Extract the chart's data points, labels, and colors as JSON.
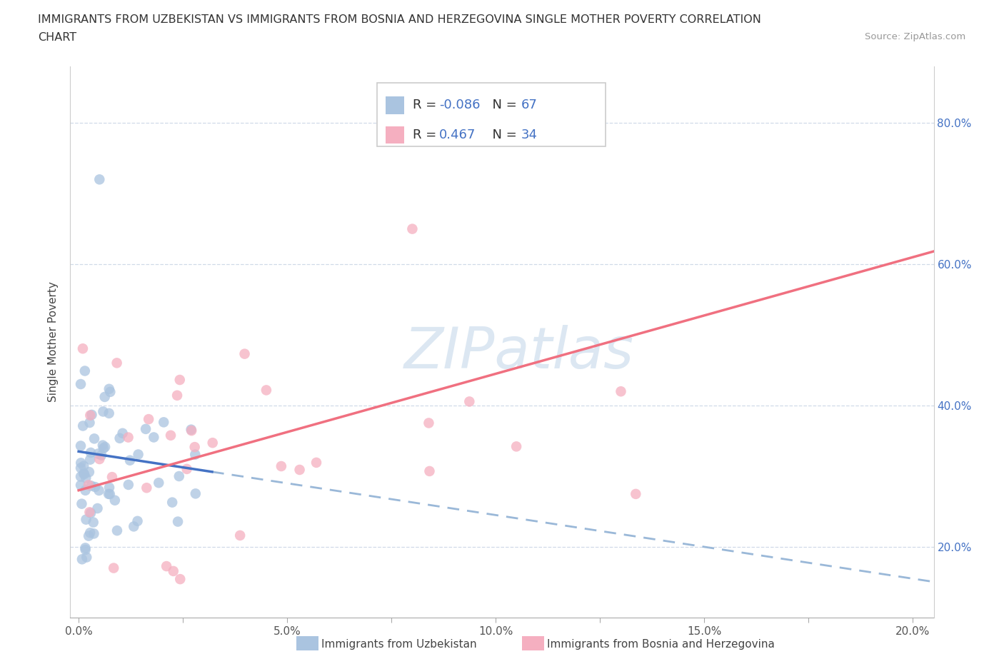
{
  "title_line1": "IMMIGRANTS FROM UZBEKISTAN VS IMMIGRANTS FROM BOSNIA AND HERZEGOVINA SINGLE MOTHER POVERTY CORRELATION",
  "title_line2": "CHART",
  "source": "Source: ZipAtlas.com",
  "xlabel_blue": "Immigrants from Uzbekistan",
  "xlabel_pink": "Immigrants from Bosnia and Herzegovina",
  "ylabel": "Single Mother Poverty",
  "R_blue": -0.086,
  "N_blue": 67,
  "R_pink": 0.467,
  "N_pink": 34,
  "color_blue": "#aac4e0",
  "color_pink": "#f5afc0",
  "line_blue": "#4472c4",
  "line_pink": "#f07080",
  "line_dashed_color": "#9ab8d8",
  "watermark_color": "#c5d8ea",
  "xmin": 0.0,
  "xmax": 0.205,
  "ymin": 0.1,
  "ymax": 0.88,
  "yticks": [
    0.2,
    0.4,
    0.6,
    0.8
  ],
  "xticks": [
    0.0,
    0.025,
    0.05,
    0.075,
    0.1,
    0.125,
    0.15,
    0.175,
    0.2
  ],
  "xtick_labels": [
    "0.0%",
    "",
    "5.0%",
    "",
    "10.0%",
    "",
    "15.0%",
    "",
    "20.0%"
  ]
}
